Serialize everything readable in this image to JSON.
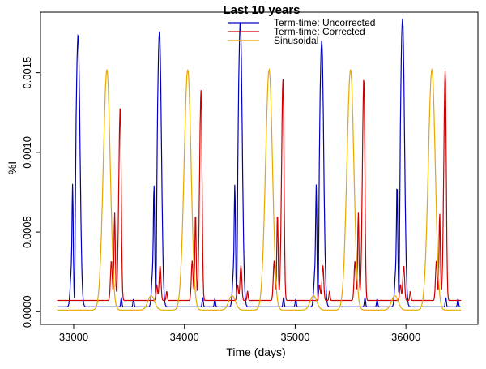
{
  "chart_data": {
    "type": "line",
    "title": "Last 10 years",
    "xlabel": "Time (days)",
    "ylabel": "%I",
    "xlim": [
      32700,
      36650
    ],
    "ylim": [
      -8e-05,
      0.00188
    ],
    "x_ticks": [
      33000,
      34000,
      35000,
      36000
    ],
    "y_ticks": [
      0.0,
      0.0005,
      0.001,
      0.0015
    ],
    "y_tick_labels": [
      "0.0000",
      "0.0005",
      "0.0010",
      "0.0015"
    ],
    "grid": false,
    "legend_position": "top-center",
    "x_range": [
      32850,
      36500
    ],
    "epidemic_period_days": 730,
    "series": [
      {
        "name": "Term-time: Uncorrected",
        "color": "#0000c0",
        "peaks": [
          {
            "x": 33040,
            "y": 0.00174
          },
          {
            "x": 33775,
            "y": 0.00176
          },
          {
            "x": 34505,
            "y": 0.00182
          },
          {
            "x": 35240,
            "y": 0.0017
          },
          {
            "x": 35970,
            "y": 0.00184
          }
        ],
        "baseline": 3e-05
      },
      {
        "name": "Term-time: Corrected",
        "color": "#cc0000",
        "peaks": [
          {
            "x": 33420,
            "y": 0.00129
          },
          {
            "x": 34150,
            "y": 0.00139
          },
          {
            "x": 34890,
            "y": 0.00146
          },
          {
            "x": 35620,
            "y": 0.00147
          },
          {
            "x": 36355,
            "y": 0.00152
          }
        ],
        "baseline": 7e-05
      },
      {
        "name": "Sinusoidal",
        "color": "#e6a800",
        "peaks": [
          {
            "x": 33300,
            "y": 0.00152
          },
          {
            "x": 34030,
            "y": 0.00152
          },
          {
            "x": 34765,
            "y": 0.00152
          },
          {
            "x": 35500,
            "y": 0.00152
          },
          {
            "x": 36235,
            "y": 0.00152
          }
        ],
        "baseline": 1e-05
      }
    ]
  }
}
